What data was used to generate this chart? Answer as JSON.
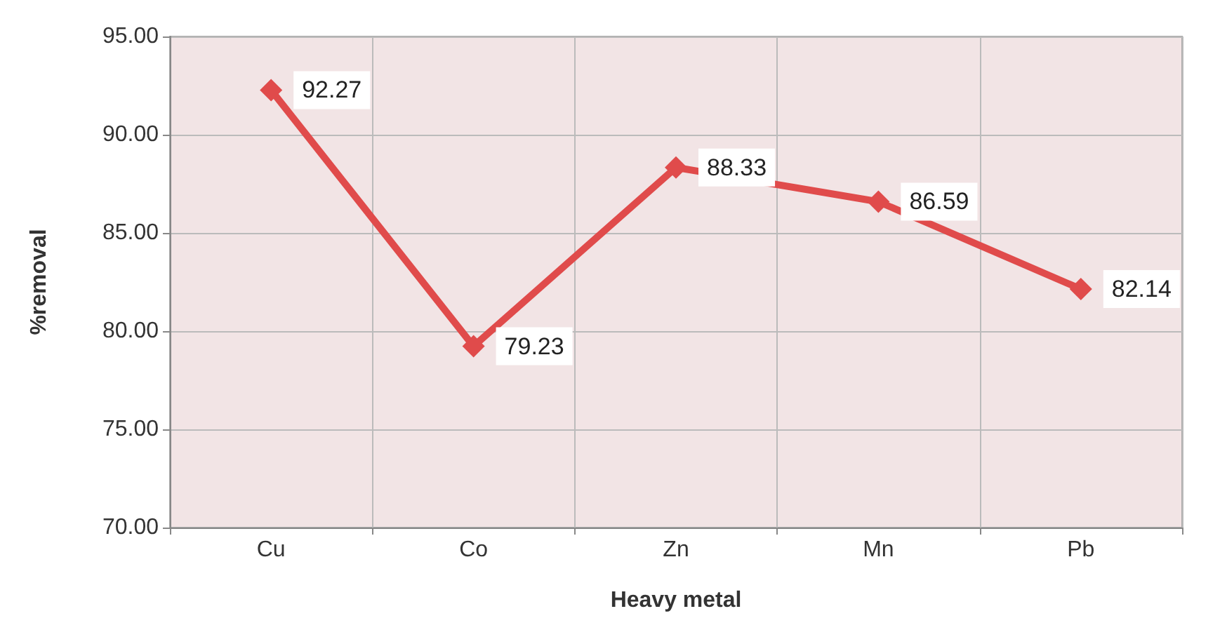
{
  "chart_data": {
    "type": "line",
    "xlabel": "Heavy metal",
    "ylabel": "%removal",
    "categories": [
      "Cu",
      "Co",
      "Zn",
      "Mn",
      "Pb"
    ],
    "series": [
      {
        "color": "#e04b4b",
        "values": [
          92.27,
          79.23,
          88.33,
          86.59,
          82.14
        ]
      }
    ],
    "ylim": [
      70,
      95
    ],
    "yticks": [
      {
        "value": 70,
        "label": "70.00"
      },
      {
        "value": 75,
        "label": "75.00"
      },
      {
        "value": 80,
        "label": "80.00"
      },
      {
        "value": 85,
        "label": "85.00"
      },
      {
        "value": 90,
        "label": "90.00"
      },
      {
        "value": 95,
        "label": "95.00"
      }
    ],
    "grid": true,
    "marker": "diamond",
    "line_style": "solid",
    "data_labels": true
  }
}
